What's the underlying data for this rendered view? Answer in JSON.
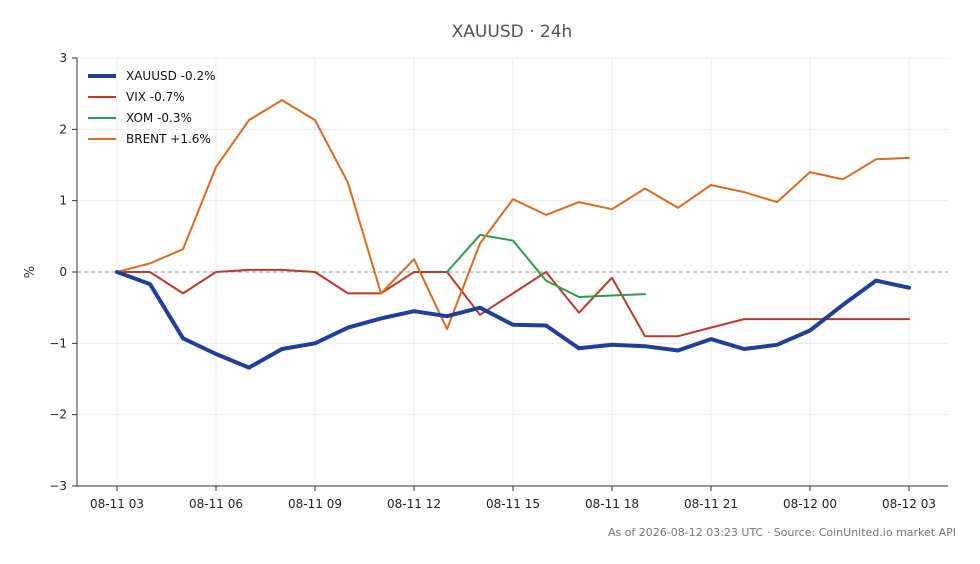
{
  "chart_data": {
    "type": "line",
    "title": "XAUUSD · 24h",
    "ylabel": "%",
    "xlabel": "",
    "ylim": [
      -3,
      3
    ],
    "yticks": [
      3,
      2,
      1,
      0,
      -1,
      -2,
      -3
    ],
    "xticks": [
      "08-11 03",
      "08-11 06",
      "08-11 09",
      "08-11 12",
      "08-11 15",
      "08-11 18",
      "08-11 21",
      "08-12 00",
      "08-12 03"
    ],
    "grid": true,
    "legend_position": "top-left",
    "zero_line": true,
    "series": [
      {
        "name": "XAUUSD -0.2%",
        "color": "#1f3f9a",
        "emphasis": true,
        "points": [
          [
            0,
            0
          ],
          [
            1,
            -0.17
          ],
          [
            2,
            -0.93
          ],
          [
            3,
            -1.15
          ],
          [
            4,
            -1.34
          ],
          [
            5,
            -1.08
          ],
          [
            6,
            -1.0
          ],
          [
            7,
            -0.78
          ],
          [
            8,
            -0.65
          ],
          [
            9,
            -0.55
          ],
          [
            10,
            -0.62
          ],
          [
            11,
            -0.5
          ],
          [
            12,
            -0.74
          ],
          [
            13,
            -0.75
          ],
          [
            14,
            -1.07
          ],
          [
            15,
            -1.02
          ],
          [
            16,
            -1.04
          ],
          [
            17,
            -1.1
          ],
          [
            18,
            -0.94
          ],
          [
            19,
            -1.08
          ],
          [
            20,
            -1.02
          ],
          [
            21,
            -0.82
          ],
          [
            22,
            -0.46
          ],
          [
            23,
            -0.12
          ],
          [
            24,
            -0.22
          ]
        ]
      },
      {
        "name": "VIX -0.7%",
        "color": "#c0392b",
        "emphasis": false,
        "points": [
          [
            0,
            0
          ],
          [
            1,
            0
          ],
          [
            2,
            -0.3
          ],
          [
            3,
            0
          ],
          [
            4,
            0.03
          ],
          [
            5,
            0.03
          ],
          [
            6,
            0
          ],
          [
            7,
            -0.3
          ],
          [
            8,
            -0.3
          ],
          [
            9,
            0
          ],
          [
            10,
            0
          ],
          [
            11,
            -0.6
          ],
          [
            12,
            -0.3
          ],
          [
            13,
            0
          ],
          [
            14,
            -0.57
          ],
          [
            15,
            -0.08
          ],
          [
            16,
            -0.9
          ],
          [
            17,
            -0.9
          ],
          [
            18,
            -0.78
          ],
          [
            19,
            -0.66
          ],
          [
            20,
            -0.66
          ],
          [
            21,
            -0.66
          ],
          [
            22,
            -0.66
          ],
          [
            23,
            -0.66
          ],
          [
            24,
            -0.66
          ]
        ]
      },
      {
        "name": "XOM -0.3%",
        "color": "#27a048",
        "emphasis": false,
        "points": [
          [
            10,
            0
          ],
          [
            11,
            0.52
          ],
          [
            12,
            0.44
          ],
          [
            13,
            -0.12
          ],
          [
            14,
            -0.35
          ],
          [
            15,
            -0.33
          ],
          [
            16,
            -0.31
          ]
        ]
      },
      {
        "name": "BRENT +1.6%",
        "color": "#e06a1b",
        "emphasis": false,
        "points": [
          [
            0,
            0
          ],
          [
            1,
            0.12
          ],
          [
            2,
            0.32
          ],
          [
            3,
            1.47
          ],
          [
            4,
            2.13
          ],
          [
            5,
            2.41
          ],
          [
            6,
            2.13
          ],
          [
            7,
            1.25
          ],
          [
            8,
            -0.3
          ],
          [
            9,
            0.18
          ],
          [
            10,
            -0.8
          ],
          [
            11,
            0.4
          ],
          [
            12,
            1.02
          ],
          [
            13,
            0.8
          ],
          [
            14,
            0.98
          ],
          [
            15,
            0.88
          ],
          [
            16,
            1.17
          ],
          [
            17,
            0.9
          ],
          [
            18,
            1.22
          ],
          [
            19,
            1.12
          ],
          [
            20,
            0.98
          ],
          [
            21,
            1.4
          ],
          [
            22,
            1.3
          ],
          [
            23,
            1.58
          ],
          [
            24,
            1.6
          ]
        ]
      }
    ]
  },
  "footer": "As of 2026-08-12 03:23 UTC · Source: CoinUnited.io market API"
}
